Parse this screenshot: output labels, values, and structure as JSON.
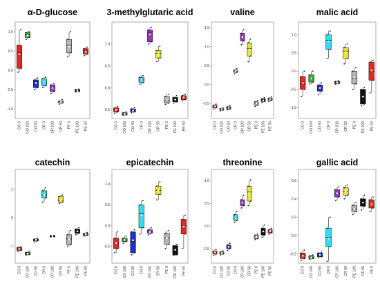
{
  "chart_data": [
    {
      "type": "box",
      "title": "α-D-glucose",
      "categories": [
        "CO 0",
        "CO 100",
        "CO 50",
        "CR 0",
        "CR 100",
        "CR 50",
        "PE 0",
        "PE 100",
        "PE 50"
      ],
      "yticks": [
        "-1.0",
        "-0.5",
        "0.0",
        "0.5",
        "1.0"
      ],
      "ylim": [
        -1.25,
        1.25
      ],
      "colors": [
        "#e8261f",
        "#3cae3a",
        "#1f2fcc",
        "#33dcee",
        "#9b32c9",
        "#e8e82b",
        "#b5b5b5",
        "#111111",
        "#e8261f"
      ],
      "boxes": [
        {
          "q1": 0.05,
          "med": 0.45,
          "q3": 0.65,
          "lo": -0.05,
          "hi": 1.05,
          "mean": 0.42
        },
        {
          "q1": 0.85,
          "med": 0.92,
          "q3": 0.98,
          "lo": 0.8,
          "hi": 1.0,
          "mean": 0.9
        },
        {
          "q1": -0.45,
          "med": -0.3,
          "q3": -0.25,
          "lo": -0.5,
          "hi": -0.2,
          "mean": -0.33
        },
        {
          "q1": -0.4,
          "med": -0.33,
          "q3": -0.22,
          "lo": -0.45,
          "hi": -0.18,
          "mean": -0.32
        },
        {
          "q1": -0.55,
          "med": -0.45,
          "q3": -0.38,
          "lo": -0.6,
          "hi": -0.35,
          "mean": -0.46
        },
        {
          "q1": -0.85,
          "med": -0.82,
          "q3": -0.8,
          "lo": -0.88,
          "hi": -0.76,
          "mean": -0.82
        },
        {
          "q1": 0.45,
          "med": 0.65,
          "q3": 0.8,
          "lo": 0.35,
          "hi": 1.0,
          "mean": 0.62
        },
        {
          "q1": -0.55,
          "med": -0.53,
          "q3": -0.5,
          "lo": -0.56,
          "hi": -0.49,
          "mean": -0.53
        },
        {
          "q1": 0.42,
          "med": 0.5,
          "q3": 0.56,
          "lo": 0.38,
          "hi": 0.6,
          "mean": 0.48
        }
      ]
    },
    {
      "type": "box",
      "title": "3-methylglutaric acid",
      "categories": [
        "CO 0",
        "CO 100",
        "CO 50",
        "CR 0",
        "CR 100",
        "CR 50",
        "PE 0",
        "PE 100",
        "PE 50"
      ],
      "yticks": [
        "-0.5",
        "0.0",
        "0.5",
        "1.0"
      ],
      "ylim": [
        -0.7,
        1.5
      ],
      "colors": [
        "#e8261f",
        "#3cae3a",
        "#1f2fcc",
        "#33dcee",
        "#9b32c9",
        "#e8e82b",
        "#b5b5b5",
        "#111111",
        "#e8261f"
      ],
      "boxes": [
        {
          "q1": -0.55,
          "med": -0.5,
          "q3": -0.46,
          "lo": -0.58,
          "hi": -0.43,
          "mean": -0.5
        },
        {
          "q1": -0.62,
          "med": -0.6,
          "q3": -0.57,
          "lo": -0.63,
          "hi": -0.55,
          "mean": -0.6
        },
        {
          "q1": -0.55,
          "med": -0.52,
          "q3": -0.48,
          "lo": -0.57,
          "hi": -0.45,
          "mean": -0.52
        },
        {
          "q1": 0.12,
          "med": 0.18,
          "q3": 0.24,
          "lo": 0.08,
          "hi": 0.28,
          "mean": 0.18
        },
        {
          "q1": 1.05,
          "med": 1.25,
          "q3": 1.32,
          "lo": 1.0,
          "hi": 1.38,
          "mean": 1.22
        },
        {
          "q1": 0.68,
          "med": 0.78,
          "q3": 0.85,
          "lo": 0.6,
          "hi": 0.95,
          "mean": 0.77
        },
        {
          "q1": -0.35,
          "med": -0.3,
          "q3": -0.2,
          "lo": -0.38,
          "hi": -0.15,
          "mean": -0.28
        },
        {
          "q1": -0.32,
          "med": -0.27,
          "q3": -0.22,
          "lo": -0.35,
          "hi": -0.18,
          "mean": -0.27
        },
        {
          "q1": -0.27,
          "med": -0.22,
          "q3": -0.18,
          "lo": -0.3,
          "hi": -0.15,
          "mean": -0.22
        }
      ]
    },
    {
      "type": "box",
      "title": "valine",
      "categories": [
        "CO 0",
        "CO 100",
        "CO 50",
        "CR 0",
        "CR 100",
        "CR 50",
        "PE 0",
        "PE 100",
        "PE 50"
      ],
      "yticks": [
        "-0.5",
        "0.0",
        "0.5",
        "1.0",
        "1.5"
      ],
      "ylim": [
        -0.9,
        1.65
      ],
      "colors": [
        "#e8261f",
        "#3cae3a",
        "#1f2fcc",
        "#33dcee",
        "#9b32c9",
        "#e8e82b",
        "#b5b5b5",
        "#111111",
        "#e8261f"
      ],
      "boxes": [
        {
          "q1": -0.62,
          "med": -0.58,
          "q3": -0.55,
          "lo": -0.65,
          "hi": -0.52,
          "mean": -0.58
        },
        {
          "q1": -0.68,
          "med": -0.66,
          "q3": -0.64,
          "lo": -0.7,
          "hi": -0.62,
          "mean": -0.66
        },
        {
          "q1": -0.65,
          "med": -0.62,
          "q3": -0.59,
          "lo": -0.67,
          "hi": -0.56,
          "mean": -0.62
        },
        {
          "q1": 0.32,
          "med": 0.35,
          "q3": 0.38,
          "lo": 0.28,
          "hi": 0.42,
          "mean": 0.35
        },
        {
          "q1": 1.15,
          "med": 1.25,
          "q3": 1.35,
          "lo": 1.05,
          "hi": 1.45,
          "mean": 1.25
        },
        {
          "q1": 0.75,
          "med": 0.95,
          "q3": 1.1,
          "lo": 0.6,
          "hi": 1.2,
          "mean": 0.93
        },
        {
          "q1": -0.55,
          "med": -0.5,
          "q3": -0.46,
          "lo": -0.58,
          "hi": -0.43,
          "mean": -0.5
        },
        {
          "q1": -0.45,
          "med": -0.42,
          "q3": -0.38,
          "lo": -0.48,
          "hi": -0.35,
          "mean": -0.42
        },
        {
          "q1": -0.42,
          "med": -0.39,
          "q3": -0.36,
          "lo": -0.45,
          "hi": -0.33,
          "mean": -0.39
        }
      ]
    },
    {
      "type": "box",
      "title": "malic acid",
      "categories": [
        "CO 0",
        "CO 100",
        "CO 50",
        "CR 0",
        "CR 100",
        "CR 50",
        "PE 0",
        "PE 100",
        "PE 50"
      ],
      "yticks": [
        "-1.0",
        "-0.5",
        "0.0",
        "0.5",
        "1.0"
      ],
      "ylim": [
        -1.3,
        1.35
      ],
      "colors": [
        "#e8261f",
        "#3cae3a",
        "#1f2fcc",
        "#33dcee",
        "#9b32c9",
        "#e8e82b",
        "#b5b5b5",
        "#111111",
        "#e8261f"
      ],
      "boxes": [
        {
          "q1": -0.5,
          "med": -0.35,
          "q3": -0.15,
          "lo": -0.7,
          "hi": 0.0,
          "mean": -0.33
        },
        {
          "q1": -0.3,
          "med": -0.2,
          "q3": -0.1,
          "lo": -0.35,
          "hi": 0.0,
          "mean": -0.2
        },
        {
          "q1": -0.55,
          "med": -0.45,
          "q3": -0.38,
          "lo": -0.65,
          "hi": -0.32,
          "mean": -0.46
        },
        {
          "q1": 0.6,
          "med": 0.85,
          "q3": 1.0,
          "lo": 0.35,
          "hi": 1.1,
          "mean": 0.82
        },
        {
          "q1": -0.34,
          "med": -0.31,
          "q3": -0.28,
          "lo": -0.36,
          "hi": -0.26,
          "mean": -0.31
        },
        {
          "q1": 0.35,
          "med": 0.55,
          "q3": 0.65,
          "lo": 0.2,
          "hi": 0.75,
          "mean": 0.53
        },
        {
          "q1": -0.35,
          "med": -0.2,
          "q3": 0.0,
          "lo": -0.5,
          "hi": 0.1,
          "mean": -0.18
        },
        {
          "q1": -0.9,
          "med": -0.7,
          "q3": -0.5,
          "lo": -0.95,
          "hi": -0.45,
          "mean": -0.7
        },
        {
          "q1": -0.25,
          "med": 0.0,
          "q3": 0.25,
          "lo": -0.6,
          "hi": 0.3,
          "mean": 0.02
        }
      ]
    },
    {
      "type": "box",
      "title": "catechin",
      "categories": [
        "CO 0",
        "CO 100",
        "CO 50",
        "CR 0",
        "CR 100",
        "CR 50",
        "PE 0",
        "PE 100",
        "PE 50"
      ],
      "yticks": [
        "-1",
        "0",
        "1"
      ],
      "ylim": [
        -1.6,
        1.7
      ],
      "colors": [
        "#e8261f",
        "#3cae3a",
        "#1f2fcc",
        "#33dcee",
        "#9b32c9",
        "#e8e82b",
        "#b5b5b5",
        "#111111",
        "#e8261f"
      ],
      "boxes": [
        {
          "q1": -1.15,
          "med": -1.1,
          "q3": -1.05,
          "lo": -1.18,
          "hi": -1.02,
          "mean": -1.1
        },
        {
          "q1": -1.3,
          "med": -1.27,
          "q3": -1.22,
          "lo": -1.33,
          "hi": -1.18,
          "mean": -1.27
        },
        {
          "q1": -0.82,
          "med": -0.78,
          "q3": -0.75,
          "lo": -0.85,
          "hi": -0.72,
          "mean": -0.78
        },
        {
          "q1": 0.7,
          "med": 0.8,
          "q3": 0.95,
          "lo": 0.55,
          "hi": 1.05,
          "mean": 0.8
        },
        {
          "q1": -0.67,
          "med": -0.65,
          "q3": -0.63,
          "lo": -0.68,
          "hi": -0.62,
          "mean": -0.65
        },
        {
          "q1": 0.55,
          "med": 0.62,
          "q3": 0.75,
          "lo": 0.5,
          "hi": 0.8,
          "mean": 0.62
        },
        {
          "q1": -0.95,
          "med": -0.75,
          "q3": -0.6,
          "lo": -1.0,
          "hi": -0.45,
          "mean": -0.76
        },
        {
          "q1": -0.55,
          "med": -0.48,
          "q3": -0.4,
          "lo": -0.6,
          "hi": -0.35,
          "mean": -0.48
        },
        {
          "q1": -0.62,
          "med": -0.58,
          "q3": -0.55,
          "lo": -0.65,
          "hi": -0.52,
          "mean": -0.58
        }
      ]
    },
    {
      "type": "box",
      "title": "epicatechin",
      "categories": [
        "CO 0",
        "CO 100",
        "CO 50",
        "CR 0",
        "CR 100",
        "CR 50",
        "PE 0",
        "PE 100",
        "PE 50"
      ],
      "yticks": [
        "-0.5",
        "0.0",
        "0.5",
        "1.0"
      ],
      "ylim": [
        -0.9,
        1.35
      ],
      "colors": [
        "#e8261f",
        "#3cae3a",
        "#1f2fcc",
        "#33dcee",
        "#9b32c9",
        "#e8e82b",
        "#b5b5b5",
        "#111111",
        "#e8261f"
      ],
      "boxes": [
        {
          "q1": -0.55,
          "med": -0.42,
          "q3": -0.3,
          "lo": -0.65,
          "hi": -0.15,
          "mean": -0.42
        },
        {
          "q1": -0.38,
          "med": -0.34,
          "q3": -0.3,
          "lo": -0.42,
          "hi": -0.25,
          "mean": -0.34
        },
        {
          "q1": -0.65,
          "med": -0.38,
          "q3": -0.15,
          "lo": -0.7,
          "hi": -0.1,
          "mean": -0.35
        },
        {
          "q1": -0.05,
          "med": 0.3,
          "q3": 0.5,
          "lo": -0.2,
          "hi": 0.6,
          "mean": 0.25
        },
        {
          "q1": -0.18,
          "med": -0.15,
          "q3": -0.1,
          "lo": -0.22,
          "hi": -0.05,
          "mean": -0.15
        },
        {
          "q1": 0.75,
          "med": 0.85,
          "q3": 0.95,
          "lo": 0.62,
          "hi": 1.05,
          "mean": 0.85
        },
        {
          "q1": -0.45,
          "med": -0.3,
          "q3": -0.18,
          "lo": -0.55,
          "hi": -0.12,
          "mean": -0.3
        },
        {
          "q1": -0.7,
          "med": -0.58,
          "q3": -0.48,
          "lo": -0.72,
          "hi": -0.45,
          "mean": -0.58
        },
        {
          "q1": -0.2,
          "med": 0.0,
          "q3": 0.15,
          "lo": -0.55,
          "hi": 0.25,
          "mean": -0.02
        }
      ]
    },
    {
      "type": "box",
      "title": "threonine",
      "categories": [
        "CO 0",
        "CO 100",
        "CO 50",
        "CR 0",
        "CR 100",
        "CR 50",
        "PE 0",
        "PE 100",
        "PE 50"
      ],
      "yticks": [
        "-0.5",
        "0.0",
        "0.5",
        "1.0"
      ],
      "ylim": [
        -0.82,
        1.25
      ],
      "colors": [
        "#e8261f",
        "#3cae3a",
        "#1f2fcc",
        "#33dcee",
        "#9b32c9",
        "#e8e82b",
        "#b5b5b5",
        "#111111",
        "#e8261f"
      ],
      "boxes": [
        {
          "q1": -0.62,
          "med": -0.58,
          "q3": -0.55,
          "lo": -0.65,
          "hi": -0.52,
          "mean": -0.58
        },
        {
          "q1": -0.62,
          "med": -0.6,
          "q3": -0.57,
          "lo": -0.64,
          "hi": -0.55,
          "mean": -0.6
        },
        {
          "q1": -0.5,
          "med": -0.46,
          "q3": -0.42,
          "lo": -0.54,
          "hi": -0.38,
          "mean": -0.46
        },
        {
          "q1": 0.12,
          "med": 0.18,
          "q3": 0.25,
          "lo": 0.08,
          "hi": 0.32,
          "mean": 0.18
        },
        {
          "q1": 0.45,
          "med": 0.52,
          "q3": 0.58,
          "lo": 0.4,
          "hi": 0.68,
          "mean": 0.52
        },
        {
          "q1": 0.55,
          "med": 0.75,
          "q3": 0.88,
          "lo": 0.45,
          "hi": 1.02,
          "mean": 0.73
        },
        {
          "q1": -0.28,
          "med": -0.24,
          "q3": -0.2,
          "lo": -0.3,
          "hi": -0.18,
          "mean": -0.24
        },
        {
          "q1": -0.2,
          "med": -0.12,
          "q3": -0.05,
          "lo": -0.25,
          "hi": 0.02,
          "mean": -0.12
        },
        {
          "q1": -0.15,
          "med": -0.11,
          "q3": -0.08,
          "lo": -0.18,
          "hi": -0.05,
          "mean": -0.11
        }
      ]
    },
    {
      "type": "box",
      "title": "gallic acid",
      "categories": [
        "CO 0",
        "CO 100",
        "CO 50",
        "CR 0",
        "CR 100",
        "CR 50",
        "PE 100",
        "PE 50",
        "PE 0"
      ],
      "yticks": [
        "-0.2",
        "0.0",
        "0.2",
        "0.4",
        "0.6"
      ],
      "ylim": [
        -0.3,
        0.72
      ],
      "colors": [
        "#e8261f",
        "#3cae3a",
        "#1f2fcc",
        "#33dcee",
        "#9b32c9",
        "#e8e82b",
        "#b5b5b5",
        "#111111",
        "#e8261f"
      ],
      "boxes": [
        {
          "q1": -0.25,
          "med": -0.22,
          "q3": -0.19,
          "lo": -0.27,
          "hi": -0.16,
          "mean": -0.22
        },
        {
          "q1": -0.25,
          "med": -0.24,
          "q3": -0.22,
          "lo": -0.26,
          "hi": -0.21,
          "mean": -0.24
        },
        {
          "q1": -0.23,
          "med": -0.21,
          "q3": -0.19,
          "lo": -0.24,
          "hi": -0.18,
          "mean": -0.21
        },
        {
          "q1": -0.12,
          "med": -0.02,
          "q3": 0.08,
          "lo": -0.28,
          "hi": 0.2,
          "mean": -0.03
        },
        {
          "q1": 0.42,
          "med": 0.46,
          "q3": 0.5,
          "lo": 0.38,
          "hi": 0.53,
          "mean": 0.46
        },
        {
          "q1": 0.44,
          "med": 0.48,
          "q3": 0.52,
          "lo": 0.4,
          "hi": 0.55,
          "mean": 0.48
        },
        {
          "q1": 0.26,
          "med": 0.29,
          "q3": 0.33,
          "lo": 0.23,
          "hi": 0.36,
          "mean": 0.29
        },
        {
          "q1": 0.32,
          "med": 0.36,
          "q3": 0.4,
          "lo": 0.28,
          "hi": 0.44,
          "mean": 0.36
        },
        {
          "q1": 0.3,
          "med": 0.34,
          "q3": 0.39,
          "lo": 0.26,
          "hi": 0.42,
          "mean": 0.34
        }
      ]
    }
  ]
}
